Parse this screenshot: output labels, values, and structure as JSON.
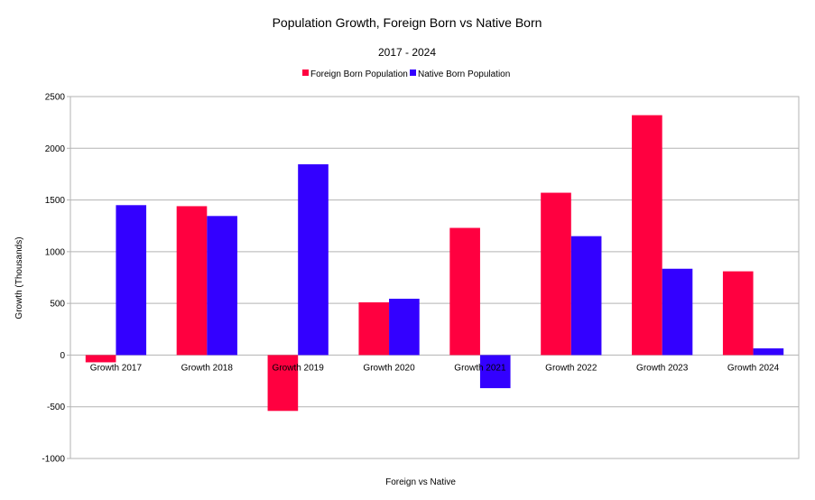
{
  "chart_data": {
    "type": "bar",
    "title": "Population Growth, Foreign Born vs Native Born",
    "subtitle": "2017 - 2024",
    "xlabel": "Foreign vs Native",
    "ylabel": "Growth (Thousands)",
    "ylim": [
      -1000,
      2500
    ],
    "ytick_step": 500,
    "yticks": [
      "2500",
      "2000",
      "1500",
      "1000",
      "500",
      "0",
      "-500",
      "-1000"
    ],
    "grid": true,
    "legend_position": "top-center",
    "categories": [
      "Growth 2017",
      "Growth 2018",
      "Growth 2019",
      "Growth 2020",
      "Growth 2021",
      "Growth 2022",
      "Growth 2023",
      "Growth 2024"
    ],
    "series": [
      {
        "name": "Foreign Born Population",
        "color": "#ff0040",
        "values": [
          -70,
          1440,
          -540,
          510,
          1230,
          1570,
          2320,
          810
        ]
      },
      {
        "name": "Native Born Population",
        "color": "#3300ff",
        "values": [
          1450,
          1345,
          1845,
          545,
          -320,
          1150,
          835,
          65
        ]
      }
    ]
  }
}
